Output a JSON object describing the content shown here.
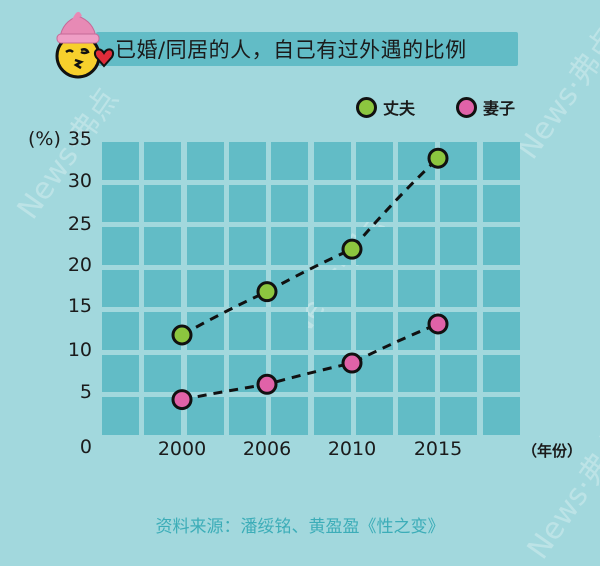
{
  "title": "已婚/同居的人，自己有过外遇的比例",
  "legend": [
    {
      "label": "丈夫",
      "color": "#8cc63f"
    },
    {
      "label": "妻子",
      "color": "#e062a8"
    }
  ],
  "y_unit": "(%)",
  "x_unit": "（年份）",
  "source": "资料来源：潘绥铭、黄盈盈《性之变》",
  "watermark": "News·弗点",
  "colors": {
    "background": "#a2d8dd",
    "grid_cell": "#62bcc6",
    "banner": "#62bcc6",
    "source_text": "#3cadb8"
  },
  "chart_data": {
    "type": "line",
    "title": "已婚/同居的人，自己有过外遇的比例",
    "xlabel": "（年份）",
    "ylabel": "(%)",
    "categories": [
      "2000",
      "2006",
      "2010",
      "2015"
    ],
    "series": [
      {
        "name": "丈夫",
        "values": [
          12.0,
          17.1,
          22.1,
          32.8
        ],
        "color": "#8cc63f"
      },
      {
        "name": "妻子",
        "values": [
          4.4,
          6.2,
          8.7,
          13.3
        ],
        "color": "#e062a8"
      }
    ],
    "y_ticks": [
      0,
      5,
      10,
      15,
      20,
      25,
      30,
      35
    ],
    "ylim": [
      0,
      35
    ],
    "grid": true,
    "line_style": "dashed",
    "legend_position": "top-right"
  }
}
